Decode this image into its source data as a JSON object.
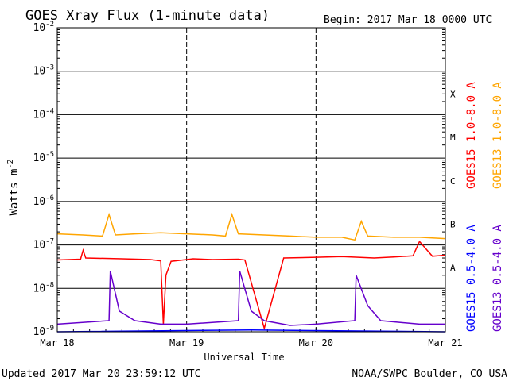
{
  "chart_data": {
    "type": "line",
    "title": "GOES Xray Flux (1-minute data)",
    "begin_label": "Begin:  2017 Mar 18 0000 UTC",
    "ylabel_base": "Watts m",
    "ylabel_exp": "-2",
    "xlabel": "Universal Time",
    "x_ticks": [
      "Mar 18",
      "Mar 19",
      "Mar 20",
      "Mar 21"
    ],
    "y_scale": "log",
    "ylim": [
      1e-09,
      0.01
    ],
    "y_ticks": [
      {
        "value": 1e-09,
        "base": "10",
        "exp": "-9"
      },
      {
        "value": 1e-08,
        "base": "10",
        "exp": "-8"
      },
      {
        "value": 1e-07,
        "base": "10",
        "exp": "-7"
      },
      {
        "value": 1e-06,
        "base": "10",
        "exp": "-6"
      },
      {
        "value": 1e-05,
        "base": "10",
        "exp": "-5"
      },
      {
        "value": 0.0001,
        "base": "10",
        "exp": "-4"
      },
      {
        "value": 0.001,
        "base": "10",
        "exp": "-3"
      },
      {
        "value": 0.01,
        "base": "10",
        "exp": "-2"
      }
    ],
    "flare_classes": [
      {
        "label": "A",
        "value": 3e-08
      },
      {
        "label": "B",
        "value": 3e-07
      },
      {
        "label": "C",
        "value": 3e-06
      },
      {
        "label": "M",
        "value": 3e-05
      },
      {
        "label": "X",
        "value": 0.0003
      }
    ],
    "legend_placement": "right",
    "series": [
      {
        "name": "GOES15 1.0-8.0 A",
        "color": "#ff0000",
        "x": [
          0,
          0.18,
          0.2,
          0.22,
          0.5,
          0.72,
          0.8,
          0.82,
          0.84,
          0.88,
          1.0,
          1.05,
          1.2,
          1.4,
          1.45,
          1.6,
          1.75,
          2.0,
          2.2,
          2.45,
          2.6,
          2.75,
          2.8,
          2.9,
          3.0
        ],
        "y": [
          4.5e-08,
          4.7e-08,
          7.5e-08,
          5e-08,
          4.8e-08,
          4.6e-08,
          4.3e-08,
          1.5e-09,
          2e-08,
          4.2e-08,
          4.6e-08,
          4.8e-08,
          4.6e-08,
          4.7e-08,
          4.5e-08,
          1.2e-09,
          5e-08,
          5.2e-08,
          5.4e-08,
          5e-08,
          5.3e-08,
          5.6e-08,
          1.2e-07,
          5.5e-08,
          5.8e-08
        ]
      },
      {
        "name": "GOES13 1.0-8.0 A",
        "color": "#ffa500",
        "x": [
          0,
          0.2,
          0.35,
          0.4,
          0.45,
          0.6,
          0.8,
          1.0,
          1.2,
          1.3,
          1.35,
          1.4,
          1.6,
          1.8,
          2.0,
          2.2,
          2.3,
          2.35,
          2.4,
          2.6,
          2.8,
          3.0
        ],
        "y": [
          1.8e-07,
          1.7e-07,
          1.6e-07,
          5e-07,
          1.7e-07,
          1.8e-07,
          1.9e-07,
          1.8e-07,
          1.7e-07,
          1.6e-07,
          5e-07,
          1.8e-07,
          1.7e-07,
          1.6e-07,
          1.5e-07,
          1.5e-07,
          1.3e-07,
          3.5e-07,
          1.6e-07,
          1.5e-07,
          1.5e-07,
          1.4e-07
        ]
      },
      {
        "name": "GOES15 0.5-4.0 A",
        "color": "#0000ff",
        "x": [
          0,
          1.5,
          3.0
        ],
        "y": [
          1e-09,
          1.1e-09,
          1e-09
        ]
      },
      {
        "name": "GOES13 0.5-4.0 A",
        "color": "#6600cc",
        "x": [
          0,
          0.4,
          0.41,
          0.48,
          0.6,
          0.8,
          1.0,
          1.4,
          1.41,
          1.5,
          1.6,
          1.8,
          2.0,
          2.3,
          2.31,
          2.4,
          2.5,
          2.8,
          3.0
        ],
        "y": [
          1.5e-09,
          1.8e-09,
          2.5e-08,
          3e-09,
          1.8e-09,
          1.5e-09,
          1.5e-09,
          1.8e-09,
          2.5e-08,
          3e-09,
          1.8e-09,
          1.4e-09,
          1.5e-09,
          1.8e-09,
          2e-08,
          4e-09,
          1.8e-09,
          1.5e-09,
          1.5e-09
        ]
      }
    ]
  },
  "footer": {
    "updated": "Updated 2017 Mar 20 23:59:12 UTC",
    "source": "NOAA/SWPC Boulder, CO USA"
  }
}
